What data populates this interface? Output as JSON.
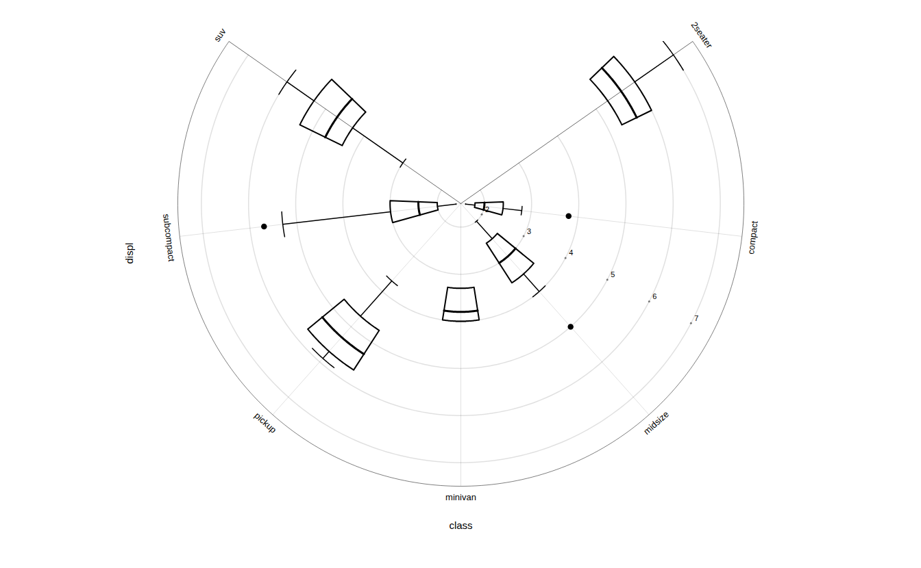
{
  "chart_data": {
    "type": "boxplot",
    "xlabel": "class",
    "ylabel": "displ",
    "categories": [
      "suv",
      "subcompact",
      "pickup",
      "minivan",
      "midsize",
      "compact",
      "2seater"
    ],
    "q1": [
      4.3,
      2.0,
      4.7,
      3.3,
      2.5,
      1.8,
      5.3
    ],
    "median": [
      4.7,
      2.4,
      5.3,
      3.8,
      3.0,
      2.0,
      5.65
    ],
    "q3": [
      5.3,
      3.0,
      5.7,
      4.0,
      3.5,
      2.4,
      6.0
    ],
    "whisker_low": [
      3.0,
      1.6,
      3.7,
      3.3,
      2.0,
      1.6,
      5.3
    ],
    "whisker_high": [
      6.0,
      5.3,
      5.9,
      4.0,
      4.0,
      2.8,
      7.0
    ],
    "outliers": [
      [],
      [
        5.7
      ],
      [],
      [],
      [
        5.0
      ],
      [
        3.8
      ],
      []
    ],
    "ylim": [
      1.5,
      7.5
    ],
    "yticks": [
      2,
      3,
      4,
      5,
      6,
      7
    ],
    "grid": true,
    "color": "black"
  }
}
